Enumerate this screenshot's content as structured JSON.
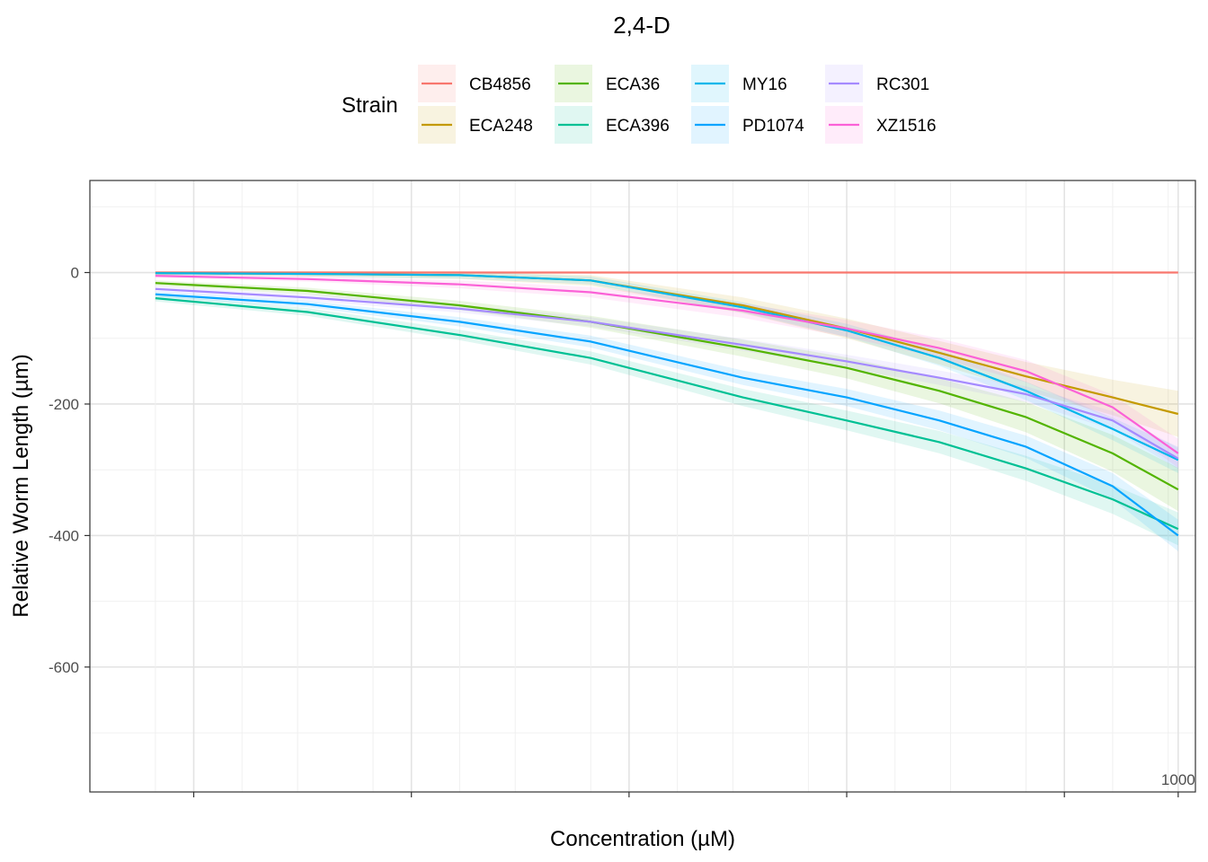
{
  "chart_data": {
    "type": "line",
    "title": "2,4-D",
    "xlabel": "Concentration (µM)",
    "ylabel": "Relative Worm Length (µm)",
    "legend_title": "Strain",
    "legend_position": "top",
    "grid": true,
    "x_scale": "log10",
    "xlim": [
      0.01,
      1200
    ],
    "x_ticks": [
      {
        "value": 1000,
        "label": "1000"
      }
    ],
    "x_minor_ticks": [
      0.03,
      0.3,
      3,
      30,
      300
    ],
    "ylim": [
      -790,
      140
    ],
    "y_ticks": [
      {
        "value": 0,
        "label": "0"
      },
      {
        "value": -200,
        "label": "-200"
      },
      {
        "value": -400,
        "label": "-400"
      },
      {
        "value": -600,
        "label": "-600"
      }
    ],
    "x": [
      0.02,
      0.1,
      0.5,
      2,
      10,
      30,
      80,
      200,
      500,
      1000
    ],
    "series": [
      {
        "name": "CB4856",
        "color": "#F8766D",
        "values": [
          0,
          0,
          0,
          0,
          0,
          0,
          0,
          0,
          0,
          0
        ],
        "ci_halfwidth": [
          1,
          1,
          1,
          1,
          1,
          1,
          1,
          1,
          1,
          1
        ]
      },
      {
        "name": "ECA248",
        "color": "#C49A00",
        "values": [
          -1,
          -2,
          -4,
          -12,
          -50,
          -85,
          -122,
          -158,
          -190,
          -215
        ],
        "ci_halfwidth": [
          3,
          4,
          6,
          8,
          12,
          15,
          18,
          22,
          27,
          35
        ]
      },
      {
        "name": "ECA36",
        "color": "#53B400",
        "values": [
          -16,
          -28,
          -50,
          -75,
          -115,
          -145,
          -180,
          -220,
          -275,
          -330
        ],
        "ci_halfwidth": [
          4,
          5,
          7,
          9,
          13,
          16,
          19,
          23,
          28,
          33
        ]
      },
      {
        "name": "ECA396",
        "color": "#00C094",
        "values": [
          -39,
          -60,
          -95,
          -130,
          -190,
          -225,
          -258,
          -298,
          -345,
          -390
        ],
        "ci_halfwidth": [
          5,
          6,
          8,
          10,
          13,
          15,
          17,
          19,
          22,
          25
        ]
      },
      {
        "name": "MY16",
        "color": "#00B6EB",
        "values": [
          -1,
          -2,
          -4,
          -12,
          -53,
          -88,
          -130,
          -180,
          -238,
          -285
        ],
        "ci_halfwidth": [
          3,
          4,
          5,
          6,
          8,
          10,
          12,
          14,
          17,
          20
        ]
      },
      {
        "name": "PD1074",
        "color": "#06A4FF",
        "values": [
          -33,
          -48,
          -75,
          -105,
          -160,
          -190,
          -225,
          -265,
          -325,
          -400
        ],
        "ci_halfwidth": [
          4,
          5,
          7,
          9,
          11,
          13,
          15,
          17,
          20,
          24
        ]
      },
      {
        "name": "RC301",
        "color": "#A58AFF",
        "values": [
          -25,
          -38,
          -55,
          -75,
          -110,
          -135,
          -160,
          -185,
          -225,
          -283
        ],
        "ci_halfwidth": [
          4,
          5,
          6,
          7,
          9,
          10,
          11,
          12,
          14,
          16
        ]
      },
      {
        "name": "XZ1516",
        "color": "#FB61D7",
        "values": [
          -5,
          -10,
          -18,
          -30,
          -58,
          -85,
          -115,
          -150,
          -205,
          -275
        ],
        "ci_halfwidth": [
          3,
          4,
          6,
          8,
          11,
          13,
          15,
          17,
          19,
          22
        ]
      }
    ]
  }
}
